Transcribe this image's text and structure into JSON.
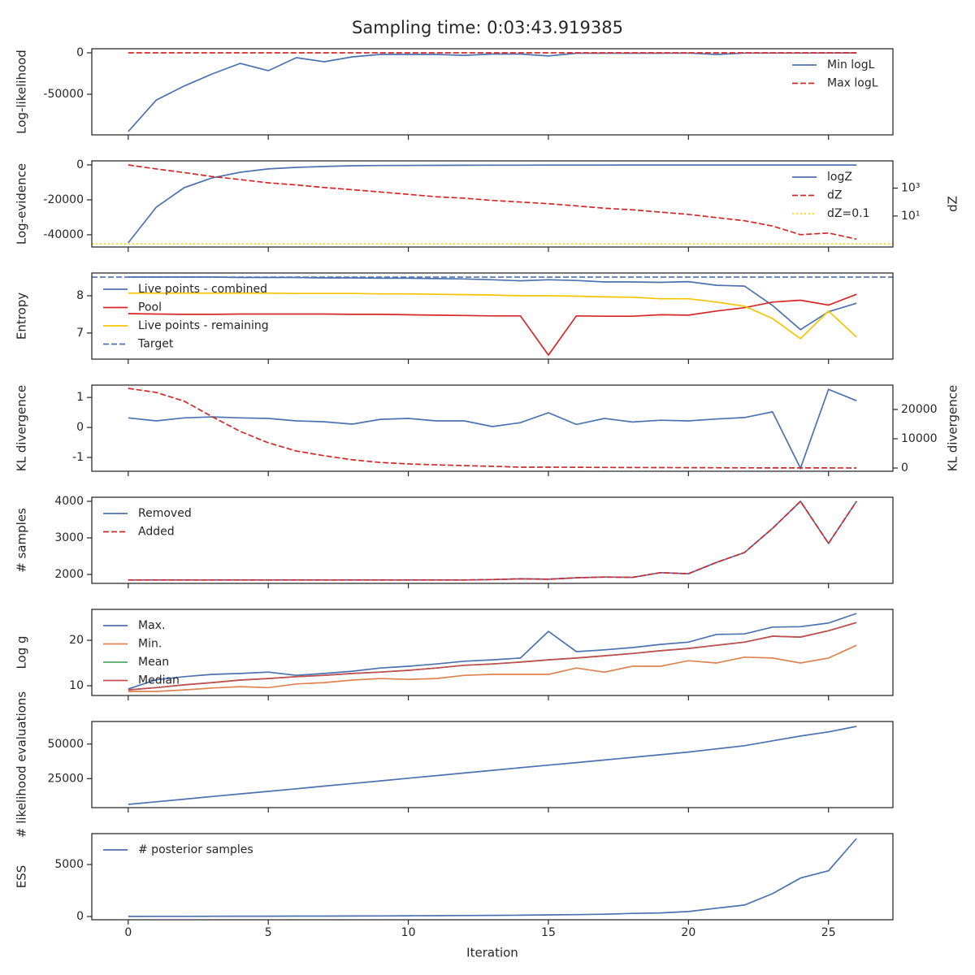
{
  "title": "Sampling time: 0:03:43.919385",
  "chart_data": [
    {
      "type": "line",
      "ylabel": "Log-likelihood",
      "legend": "upper right",
      "x": [
        0,
        1,
        2,
        3,
        4,
        5,
        6,
        7,
        8,
        9,
        10,
        11,
        12,
        13,
        14,
        15,
        16,
        17,
        18,
        19,
        20,
        21,
        22,
        23,
        24,
        25,
        26
      ],
      "xlim": [
        -1.3,
        27.3
      ],
      "xticks": [
        0,
        5,
        10,
        15,
        20,
        25
      ],
      "ylim": [
        -99000,
        4900
      ],
      "yticks": [
        -50000,
        0
      ],
      "series": [
        {
          "name": "Min logL",
          "color": "#4c72b0",
          "dash": "solid",
          "values": [
            -95000,
            -57000,
            -40000,
            -25500,
            -12700,
            -21600,
            -5900,
            -10800,
            -4900,
            -2000,
            -2000,
            -2000,
            -3000,
            -1500,
            -1500,
            -3800,
            -500,
            -500,
            -500,
            -500,
            -300,
            -2000,
            -300,
            -300,
            -300,
            -200,
            -100
          ]
        },
        {
          "name": "Max logL",
          "color": "#d62728",
          "dash": "dashed",
          "values": [
            0,
            0,
            0,
            0,
            0,
            0,
            0,
            0,
            0,
            0,
            0,
            0,
            0,
            0,
            0,
            0,
            0,
            0,
            0,
            0,
            0,
            0,
            0,
            0,
            0,
            0,
            0
          ]
        }
      ]
    },
    {
      "type": "line",
      "ylabel": "Log-evidence",
      "y2label": "dZ",
      "legend": "upper right",
      "x": [
        0,
        1,
        2,
        3,
        4,
        5,
        6,
        7,
        8,
        9,
        10,
        11,
        12,
        13,
        14,
        15,
        16,
        17,
        18,
        19,
        20,
        21,
        22,
        23,
        24,
        25,
        26
      ],
      "xlim": [
        -1.3,
        27.3
      ],
      "xticks": [
        0,
        5,
        10,
        15,
        20,
        25
      ],
      "ylim": [
        -47000,
        2300
      ],
      "yticks": [
        -40000,
        -20000,
        0
      ],
      "y2lim": [
        0.06,
        90000
      ],
      "y2log": true,
      "y2ticks": [
        {
          "value": 10,
          "label": "10¹"
        },
        {
          "value": 1000,
          "label": "10³"
        }
      ],
      "series": [
        {
          "name": "logZ",
          "color": "#4c72b0",
          "dash": "solid",
          "values": [
            -44650,
            -24200,
            -13000,
            -7400,
            -4200,
            -2300,
            -1400,
            -900,
            -500,
            -350,
            -300,
            -250,
            -200,
            -170,
            -150,
            -130,
            -110,
            -100,
            -90,
            -80,
            -70,
            -60,
            -55,
            -50,
            -50,
            -50,
            -50
          ]
        },
        {
          "name": "dZ",
          "color": "#d62728",
          "dash": "dashed",
          "axis": "y2",
          "values": [
            46000,
            24000,
            13000,
            6800,
            4100,
            2400,
            1700,
            1100,
            770,
            530,
            360,
            240,
            190,
            130,
            100,
            77,
            53,
            36,
            28,
            19,
            13,
            7.7,
            4.6,
            1.9,
            0.46,
            0.6,
            0.22
          ]
        },
        {
          "name": "dZ=0.1",
          "color": "#ffd700",
          "dash": "dotted",
          "axis": "y2",
          "value": 0.1
        }
      ]
    },
    {
      "type": "line",
      "ylabel": "Entropy",
      "legend": "upper left",
      "x": [
        0,
        1,
        2,
        3,
        4,
        5,
        6,
        7,
        8,
        9,
        10,
        11,
        12,
        13,
        14,
        15,
        16,
        17,
        18,
        19,
        20,
        21,
        22,
        23,
        24,
        25,
        26
      ],
      "xlim": [
        -1.3,
        27.3
      ],
      "xticks": [
        0,
        5,
        10,
        15,
        20,
        25
      ],
      "ylim": [
        6.3,
        8.61
      ],
      "yticks": [
        7,
        8
      ],
      "series": [
        {
          "name": "Live points - combined",
          "color": "#4c72b0",
          "dash": "solid",
          "values": [
            8.5,
            8.5,
            8.5,
            8.5,
            8.49,
            8.49,
            8.49,
            8.48,
            8.48,
            8.47,
            8.47,
            8.46,
            8.45,
            8.43,
            8.4,
            8.43,
            8.41,
            8.37,
            8.37,
            8.36,
            8.38,
            8.28,
            8.26,
            7.74,
            7.09,
            7.57,
            7.8
          ]
        },
        {
          "name": "Pool",
          "color": "#d62728",
          "dash": "solid",
          "values": [
            7.52,
            7.51,
            7.5,
            7.5,
            7.51,
            7.51,
            7.51,
            7.51,
            7.5,
            7.5,
            7.49,
            7.48,
            7.47,
            7.46,
            7.46,
            6.41,
            7.46,
            7.45,
            7.45,
            7.49,
            7.48,
            7.59,
            7.68,
            7.83,
            7.88,
            7.75,
            8.04
          ]
        },
        {
          "name": "Live points - remaining",
          "color": "#f5c400",
          "dash": "solid",
          "values": [
            8.07,
            8.07,
            8.07,
            8.07,
            8.07,
            8.07,
            8.06,
            8.06,
            8.06,
            8.05,
            8.05,
            8.04,
            8.03,
            8.02,
            8.0,
            8.0,
            7.99,
            7.97,
            7.96,
            7.92,
            7.92,
            7.83,
            7.72,
            7.39,
            6.85,
            7.59,
            6.89
          ]
        },
        {
          "name": "Target",
          "color": "#4c72b0",
          "dash": "dashed",
          "value": 8.5
        }
      ]
    },
    {
      "type": "line",
      "ylabel": "KL divergence",
      "y2label": "KL divergence",
      "x": [
        0,
        1,
        2,
        3,
        4,
        5,
        6,
        7,
        8,
        9,
        10,
        11,
        12,
        13,
        14,
        15,
        16,
        17,
        18,
        19,
        20,
        21,
        22,
        23,
        24,
        25,
        26
      ],
      "xlim": [
        -1.3,
        27.3
      ],
      "xticks": [
        0,
        5,
        10,
        15,
        20,
        25
      ],
      "ylim": [
        -1.46,
        1.41
      ],
      "yticks": [
        -1,
        0,
        1
      ],
      "y2lim": [
        -1100,
        28300
      ],
      "y2ticks": [
        0,
        10000,
        20000
      ],
      "series": [
        {
          "color": "#4c72b0",
          "dash": "solid",
          "values": [
            0.32,
            0.22,
            0.32,
            0.35,
            0.32,
            0.3,
            0.22,
            0.19,
            0.11,
            0.27,
            0.3,
            0.22,
            0.22,
            0.03,
            0.16,
            0.49,
            0.1,
            0.3,
            0.18,
            0.24,
            0.22,
            0.28,
            0.33,
            0.52,
            -1.36,
            1.27,
            0.89
          ]
        },
        {
          "color": "#d62728",
          "dash": "dashed",
          "axis": "y2",
          "values": [
            27200,
            25800,
            22800,
            17500,
            12500,
            8600,
            5800,
            4200,
            2800,
            1900,
            1400,
            1100,
            800,
            600,
            300,
            280,
            250,
            200,
            170,
            140,
            110,
            90,
            70,
            50,
            40,
            30,
            20
          ]
        }
      ]
    },
    {
      "type": "line",
      "ylabel": "# samples",
      "legend": "upper left",
      "x": [
        0,
        1,
        2,
        3,
        4,
        5,
        6,
        7,
        8,
        9,
        10,
        11,
        12,
        13,
        14,
        15,
        16,
        17,
        18,
        19,
        20,
        21,
        22,
        23,
        24,
        25,
        26
      ],
      "xlim": [
        -1.3,
        27.3
      ],
      "xticks": [
        0,
        5,
        10,
        15,
        20,
        25
      ],
      "ylim": [
        1756,
        4111
      ],
      "yticks": [
        2000,
        3000,
        4000
      ],
      "series": [
        {
          "name": "Removed",
          "color": "#4c72b0",
          "dash": "solid",
          "values": [
            1850,
            1850,
            1850,
            1850,
            1850,
            1850,
            1850,
            1850,
            1850,
            1850,
            1850,
            1850,
            1850,
            1860,
            1880,
            1870,
            1910,
            1930,
            1920,
            2050,
            2020,
            2330,
            2600,
            3260,
            4000,
            2850,
            4000
          ]
        },
        {
          "name": "Added",
          "color": "#d62728",
          "dash": "dashed",
          "values": [
            1850,
            1850,
            1850,
            1850,
            1850,
            1850,
            1850,
            1850,
            1850,
            1850,
            1850,
            1850,
            1850,
            1860,
            1880,
            1870,
            1910,
            1930,
            1920,
            2050,
            2020,
            2330,
            2600,
            3260,
            4000,
            2850,
            4000
          ]
        }
      ]
    },
    {
      "type": "line",
      "ylabel": "Log g",
      "legend": "upper left",
      "x": [
        0,
        1,
        2,
        3,
        4,
        5,
        6,
        7,
        8,
        9,
        10,
        11,
        12,
        13,
        14,
        15,
        16,
        17,
        18,
        19,
        20,
        21,
        22,
        23,
        24,
        25,
        26
      ],
      "xlim": [
        -1.3,
        27.3
      ],
      "xticks": [
        0,
        5,
        10,
        15,
        20,
        25
      ],
      "ylim": [
        7.86,
        26.8
      ],
      "yticks": [
        10,
        20
      ],
      "series": [
        {
          "name": "Max.",
          "color": "#4c72b0",
          "dash": "solid",
          "values": [
            9.3,
            11.3,
            12.0,
            12.5,
            12.7,
            13.0,
            12.3,
            12.7,
            13.2,
            13.9,
            14.3,
            14.8,
            15.4,
            15.7,
            16.1,
            21.96,
            17.5,
            17.9,
            18.4,
            19.1,
            19.6,
            21.3,
            21.4,
            22.9,
            23.0,
            23.8,
            25.9
          ]
        },
        {
          "name": "Min.",
          "color": "#dd8452",
          "dash": "solid",
          "values": [
            8.75,
            8.75,
            9.1,
            9.5,
            9.8,
            9.6,
            10.4,
            10.7,
            11.25,
            11.6,
            11.4,
            11.6,
            12.3,
            12.5,
            12.5,
            12.5,
            13.9,
            13.0,
            14.3,
            14.3,
            15.5,
            15.0,
            16.3,
            16.1,
            15.0,
            16.1,
            18.9
          ]
        },
        {
          "name": "Mean",
          "color": "#55a868",
          "dash": "solid",
          "values": [
            9.1,
            9.6,
            10.2,
            10.7,
            11.25,
            11.6,
            12.0,
            12.3,
            12.7,
            13.0,
            13.4,
            13.9,
            14.5,
            14.8,
            15.2,
            15.7,
            16.1,
            16.6,
            17.1,
            17.7,
            18.2,
            18.9,
            19.6,
            20.9,
            20.7,
            22.1,
            23.9
          ]
        },
        {
          "name": "Median",
          "color": "#c44e52",
          "dash": "solid",
          "values": [
            9.1,
            9.6,
            10.2,
            10.7,
            11.25,
            11.6,
            12.0,
            12.3,
            12.7,
            13.0,
            13.4,
            13.9,
            14.5,
            14.8,
            15.2,
            15.7,
            16.1,
            16.6,
            17.1,
            17.7,
            18.2,
            18.9,
            19.6,
            20.9,
            20.7,
            22.1,
            23.9
          ]
        }
      ]
    },
    {
      "type": "line",
      "ylabel": "# likelihood evaluations",
      "x": [
        0,
        1,
        2,
        3,
        4,
        5,
        6,
        7,
        8,
        9,
        10,
        11,
        12,
        13,
        14,
        15,
        16,
        17,
        18,
        19,
        20,
        21,
        22,
        23,
        24,
        25,
        26
      ],
      "xlim": [
        -1.3,
        27.3
      ],
      "xticks": [
        0,
        5,
        10,
        15,
        20,
        25
      ],
      "ylim": [
        4070,
        66300
      ],
      "yticks": [
        25000,
        50000
      ],
      "series": [
        {
          "color": "#4c72b0",
          "dash": "solid",
          "values": [
            6400,
            8300,
            10200,
            12100,
            14000,
            15800,
            17700,
            19600,
            21500,
            23400,
            25300,
            27200,
            29100,
            31000,
            32900,
            34800,
            36600,
            38500,
            40400,
            42300,
            44200,
            46500,
            48800,
            52300,
            55800,
            58800,
            62800
          ]
        }
      ]
    },
    {
      "type": "line",
      "ylabel": "ESS",
      "xlabel": "Iteration",
      "show_xticklabels": true,
      "legend": "upper left",
      "x": [
        0,
        1,
        2,
        3,
        4,
        5,
        6,
        7,
        8,
        9,
        10,
        11,
        12,
        13,
        14,
        15,
        16,
        17,
        18,
        19,
        20,
        21,
        22,
        23,
        24,
        25,
        26
      ],
      "xlim": [
        -1.3,
        27.3
      ],
      "xticks": [
        0,
        5,
        10,
        15,
        20,
        25
      ],
      "ylim": [
        -310,
        7970
      ],
      "yticks": [
        0,
        5000
      ],
      "series": [
        {
          "name": "# posterior samples",
          "color": "#4c72b0",
          "dash": "solid",
          "values": [
            10,
            15,
            20,
            25,
            30,
            35,
            40,
            45,
            50,
            60,
            70,
            80,
            100,
            110,
            130,
            160,
            180,
            220,
            300,
            350,
            480,
            800,
            1100,
            2200,
            3700,
            4400,
            7500
          ]
        }
      ]
    }
  ]
}
